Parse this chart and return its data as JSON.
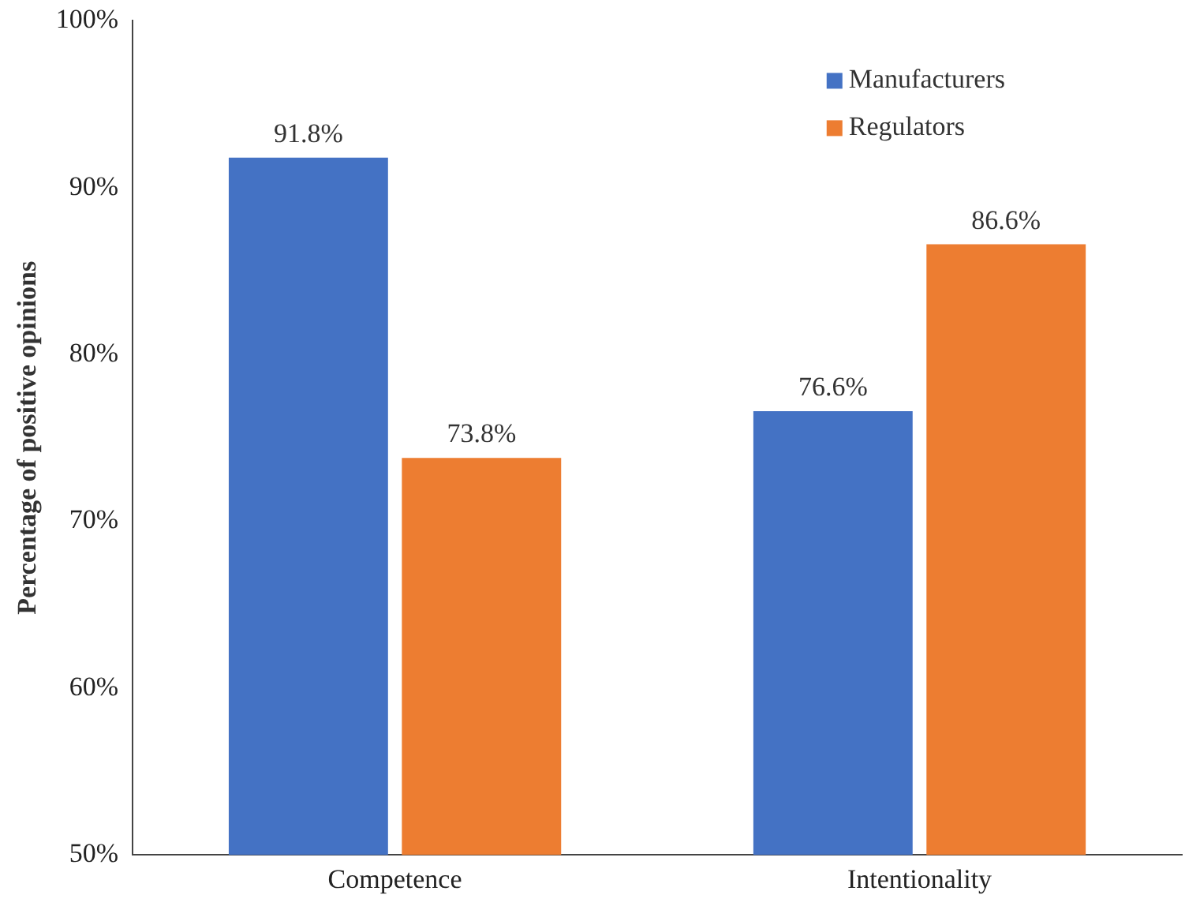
{
  "chart_data": {
    "type": "bar",
    "ylabel": "Percentage of positive opinions",
    "categories": [
      "Competence",
      "Intentionality"
    ],
    "series": [
      {
        "name": "Manufacturers",
        "color": "#4472c4",
        "values": [
          91.8,
          76.6
        ]
      },
      {
        "name": "Regulators",
        "color": "#ed7d31",
        "values": [
          73.8,
          86.6
        ]
      }
    ],
    "ylim": [
      50,
      100
    ],
    "yticks": [
      {
        "value": 50,
        "label": "50%"
      },
      {
        "value": 60,
        "label": "60%"
      },
      {
        "value": 70,
        "label": "70%"
      },
      {
        "value": 80,
        "label": "80%"
      },
      {
        "value": 90,
        "label": "90%"
      },
      {
        "value": 100,
        "label": "100%"
      }
    ],
    "value_labels": [
      [
        "91.8%",
        "76.6%"
      ],
      [
        "73.8%",
        "86.6%"
      ]
    ],
    "grid": false,
    "legend": "top right"
  }
}
